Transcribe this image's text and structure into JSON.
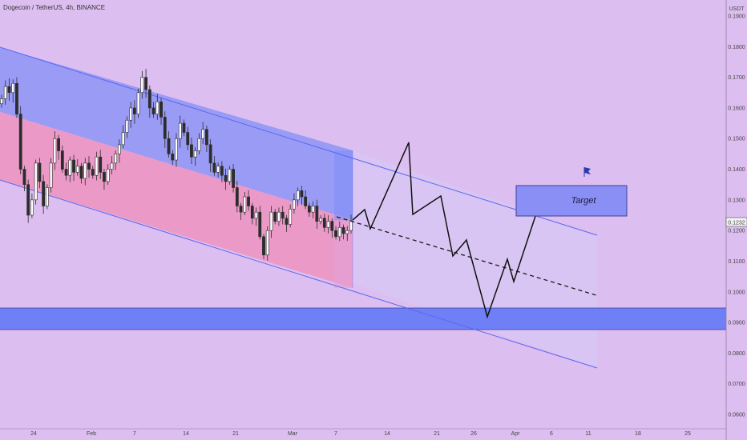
{
  "header": {
    "symbol_title": "Dogecoin / TetherUS, 4h, BINANCE",
    "currency": "USDT"
  },
  "colors": {
    "background": "#dcbff0",
    "channel_upper_fill": "#9a9bf5",
    "channel_lower_fill": "#eb9ac8",
    "projection_fill": "#d8c6f3",
    "channel_line": "#5b68f0",
    "support_zone": "#6f7ff5",
    "target_box": "#8a8ff5",
    "candle": "#2c2c2c"
  },
  "icons": {
    "flag": "flag-icon"
  },
  "annotations": {
    "target_label": "Target",
    "current_price": "0.1232"
  },
  "chart_data": {
    "type": "candlestick",
    "symbol": "Dogecoin / TetherUS",
    "timeframe": "4h",
    "exchange": "BINANCE",
    "y_axis": {
      "unit": "USDT",
      "range": [
        0.058,
        0.195
      ],
      "ticks": [
        "0.1900",
        "0.1800",
        "0.1700",
        "0.1600",
        "0.1500",
        "0.1400",
        "0.1300",
        "0.1200",
        "0.1100",
        "0.1000",
        "0.0900",
        "0.0800",
        "0.0700",
        "0.0600"
      ]
    },
    "x_axis": {
      "ticks": [
        "24",
        "Feb",
        "7",
        "14",
        "21",
        "Mar",
        "7",
        "14",
        "21",
        "26",
        "Apr",
        "6",
        "11",
        "18",
        "25"
      ]
    },
    "price_path_close": [
      0.163,
      0.167,
      0.165,
      0.168,
      0.158,
      0.14,
      0.135,
      0.125,
      0.13,
      0.142,
      0.136,
      0.128,
      0.134,
      0.142,
      0.15,
      0.146,
      0.14,
      0.138,
      0.143,
      0.139,
      0.141,
      0.137,
      0.142,
      0.14,
      0.138,
      0.144,
      0.139,
      0.136,
      0.14,
      0.142,
      0.145,
      0.148,
      0.152,
      0.156,
      0.16,
      0.158,
      0.165,
      0.17,
      0.166,
      0.16,
      0.158,
      0.162,
      0.157,
      0.15,
      0.145,
      0.143,
      0.15,
      0.155,
      0.152,
      0.148,
      0.144,
      0.146,
      0.15,
      0.153,
      0.148,
      0.142,
      0.139,
      0.141,
      0.138,
      0.136,
      0.14,
      0.134,
      0.128,
      0.126,
      0.131,
      0.128,
      0.124,
      0.126,
      0.118,
      0.112,
      0.12,
      0.126,
      0.123,
      0.126,
      0.124,
      0.122,
      0.127,
      0.13,
      0.133,
      0.131,
      0.128,
      0.126,
      0.128,
      0.123,
      0.124,
      0.121,
      0.123,
      0.12,
      0.118,
      0.121,
      0.119,
      0.12,
      0.1232
    ],
    "channel": {
      "upper_line": [
        [
          "Jan 19",
          0.1785
        ],
        [
          "Apr 11",
          0.1185
        ]
      ],
      "mid_line": [
        [
          "Jan 19",
          0.1585
        ],
        [
          "Mar 9",
          0.1232
        ]
      ],
      "lower_line": [
        [
          "Jan 19",
          0.1375
        ],
        [
          "Apr 11",
          0.0765
        ]
      ]
    },
    "projection_path": [
      0.1232,
      0.1265,
      0.1205,
      0.149,
      0.1255,
      0.132,
      0.1125,
      0.117,
      0.092,
      0.111,
      0.1035,
      0.135
    ],
    "dashed_trend": [
      [
        0.1232,
        "Mar 9"
      ],
      [
        0.099,
        "Apr 11"
      ]
    ],
    "zones": [
      {
        "name": "support",
        "range": [
          0.0875,
          0.095
        ]
      },
      {
        "name": "Target",
        "range": [
          0.1255,
          0.1355
        ]
      }
    ],
    "last_price": 0.1232
  }
}
